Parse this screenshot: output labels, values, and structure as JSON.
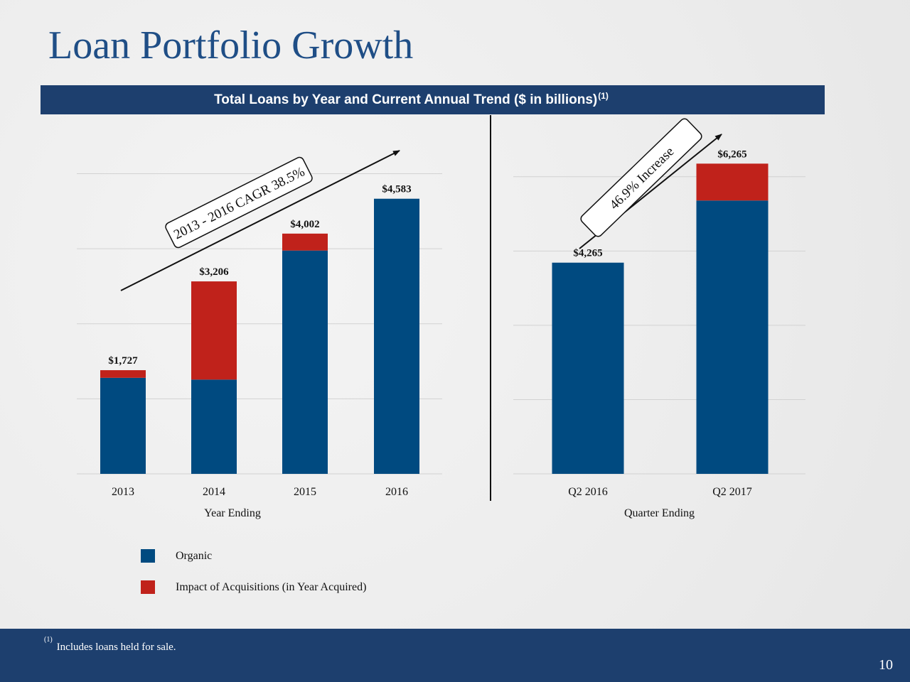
{
  "slide": {
    "title": "Loan Portfolio Growth",
    "banner_text": "Total Loans by Year and Current Annual Trend ($ in billions)",
    "banner_footnote_marker": "(1)",
    "footnote_marker": "(1)",
    "footnote_text": "Includes loans held for sale.",
    "page_number": "10"
  },
  "legend": [
    {
      "label": "Organic",
      "color": "#004a80"
    },
    {
      "label": "Impact of Acquisitions (in Year Acquired)",
      "color": "#c0221b"
    }
  ],
  "chart_data": [
    {
      "type": "bar",
      "stacked": true,
      "xlabel": "Year Ending",
      "categories": [
        "2013",
        "2014",
        "2015",
        "2016"
      ],
      "series": [
        {
          "name": "Organic",
          "values": [
            1600,
            1570,
            3720,
            4583
          ]
        },
        {
          "name": "Impact of Acquisitions (in Year Acquired)",
          "values": [
            127,
            1636,
            282,
            0
          ]
        }
      ],
      "totals": [
        "$1,727",
        "$3,206",
        "$4,002",
        "$4,583"
      ],
      "ylim": [
        0,
        5000
      ],
      "grid": true,
      "annotation": "2013 - 2016 CAGR 38.5%"
    },
    {
      "type": "bar",
      "stacked": true,
      "xlabel": "Quarter Ending",
      "categories": [
        "Q2 2016",
        "Q2 2017"
      ],
      "series": [
        {
          "name": "Organic",
          "values": [
            4265,
            5520
          ]
        },
        {
          "name": "Impact of Acquisitions (in Year Acquired)",
          "values": [
            0,
            745
          ]
        }
      ],
      "totals": [
        "$4,265",
        "$6,265"
      ],
      "ylim": [
        0,
        6000
      ],
      "grid": true,
      "annotation": "46.9% Increase"
    }
  ]
}
